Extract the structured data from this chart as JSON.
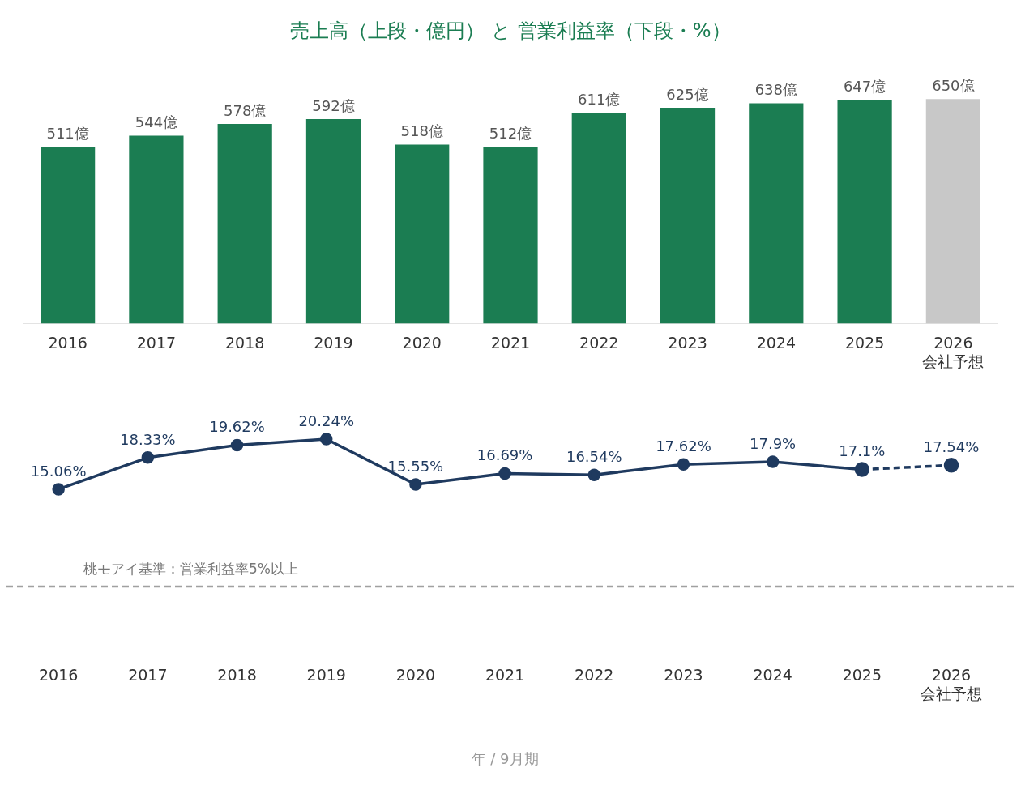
{
  "chart_data": [
    {
      "type": "bar",
      "title": "売上高（上段・億円） と 営業利益率（下段・%）",
      "categories": [
        "2016",
        "2017",
        "2018",
        "2019",
        "2020",
        "2021",
        "2022",
        "2023",
        "2024",
        "2025",
        "2026\n会社予想"
      ],
      "values": [
        511,
        544,
        578,
        592,
        518,
        512,
        611,
        625,
        638,
        647,
        650
      ],
      "colors": [
        "#1b7d52",
        "#1b7d52",
        "#1b7d52",
        "#1b7d52",
        "#1b7d52",
        "#1b7d52",
        "#1b7d52",
        "#1b7d52",
        "#1b7d52",
        "#1b7d52",
        "#c8c8c8"
      ],
      "value_labels": [
        "511億",
        "544億",
        "578億",
        "592億",
        "518億",
        "512億",
        "611億",
        "625億",
        "638億",
        "647億",
        "650億"
      ],
      "tick_labels": "x",
      "grid": false,
      "legend": false
    },
    {
      "type": "line",
      "xlabel": "年 / 9月期",
      "categories": [
        "2016",
        "2017",
        "2018",
        "2019",
        "2020",
        "2021",
        "2022",
        "2023",
        "2024",
        "2025",
        "2026\n会社予想"
      ],
      "series": [
        {
          "color": "#1f3a5f",
          "values": [
            15.06,
            18.33,
            19.62,
            20.24,
            15.55,
            16.69,
            16.54,
            17.62,
            17.9,
            17.1,
            null
          ],
          "value_labels": [
            "15.06%",
            "18.33%",
            "19.62%",
            "20.24%",
            "15.55%",
            "16.69%",
            "16.54%",
            "17.62%",
            "17.9%",
            "17.1%",
            null
          ],
          "line_style": "solid"
        },
        {
          "color": "#1f3a5f",
          "values": [
            null,
            null,
            null,
            null,
            null,
            null,
            null,
            null,
            null,
            17.1,
            17.54
          ],
          "value_labels": [
            null,
            null,
            null,
            null,
            null,
            null,
            null,
            null,
            null,
            null,
            "17.54%"
          ],
          "line_style": "dashed"
        }
      ],
      "marker": "circle",
      "ref_lines": [
        {
          "axis": "y",
          "value": 5,
          "label": "桃モアイ基準：営業利益率5%以上",
          "color": "#a0a0a0",
          "line_style": "dashed"
        }
      ],
      "tick_labels": "x",
      "grid": false,
      "legend": false
    }
  ]
}
